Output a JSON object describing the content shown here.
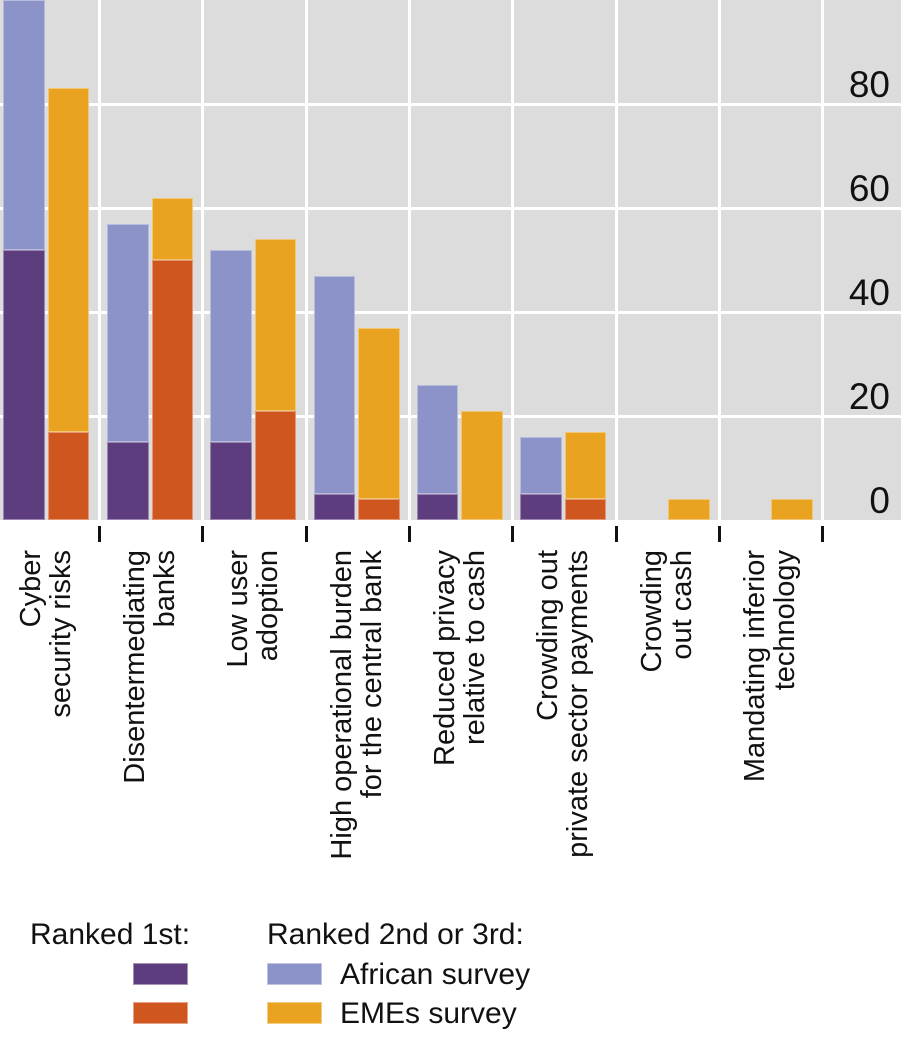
{
  "colors": {
    "ranked1_african": "#5d3d7e",
    "ranked1_emes": "#d0561f",
    "ranked23_african": "#8b93c8",
    "ranked23_emes": "#e9a320",
    "plot_background": "#dcdcdc",
    "gridline": "#ffffff",
    "text": "#111111"
  },
  "legend": {
    "ranked1_header": "Ranked 1st:",
    "ranked23_header": "Ranked 2nd or 3rd:",
    "african_label": "African survey",
    "emes_label": "EMEs survey"
  },
  "chart_data": {
    "type": "bar",
    "stacked": true,
    "orientation": "vertical",
    "legend_position": "bottom",
    "y_axis": {
      "side": "right",
      "ticks": [
        0,
        20,
        40,
        60,
        80
      ],
      "max": 100,
      "grid": true
    },
    "categories": [
      "Cyber security risks",
      "Disentermediating banks",
      "Low user adoption",
      "High operational burden for the central bank",
      "Reduced privacy relative to cash",
      "Crowding out private sector payments",
      "Crowding out cash",
      "Mandating inferior technology"
    ],
    "category_label_lines": [
      [
        "Cyber",
        "security risks"
      ],
      [
        "Disentermediating",
        "banks"
      ],
      [
        "Low user",
        "adoption"
      ],
      [
        "High operational burden",
        "for the central bank"
      ],
      [
        "Reduced privacy",
        "relative to cash"
      ],
      [
        "Crowding out",
        "private sector payments"
      ],
      [
        "Crowding",
        "out cash"
      ],
      [
        "Mandating inferior",
        "technology"
      ]
    ],
    "series": [
      {
        "name": "African survey - Ranked 1st",
        "color_key": "ranked1_african",
        "values": [
          52,
          15,
          15,
          5,
          5,
          5,
          0,
          0
        ]
      },
      {
        "name": "African survey - Ranked 2nd or 3rd",
        "color_key": "ranked23_african",
        "values": [
          48,
          42,
          37,
          42,
          21,
          11,
          0,
          0
        ]
      },
      {
        "name": "EMEs survey - Ranked 1st",
        "color_key": "ranked1_emes",
        "values": [
          17,
          50,
          21,
          4,
          0,
          4,
          0,
          0
        ]
      },
      {
        "name": "EMEs survey - Ranked 2nd or 3rd",
        "color_key": "ranked23_emes",
        "values": [
          66,
          12,
          33,
          33,
          21,
          13,
          4,
          4
        ]
      }
    ]
  }
}
